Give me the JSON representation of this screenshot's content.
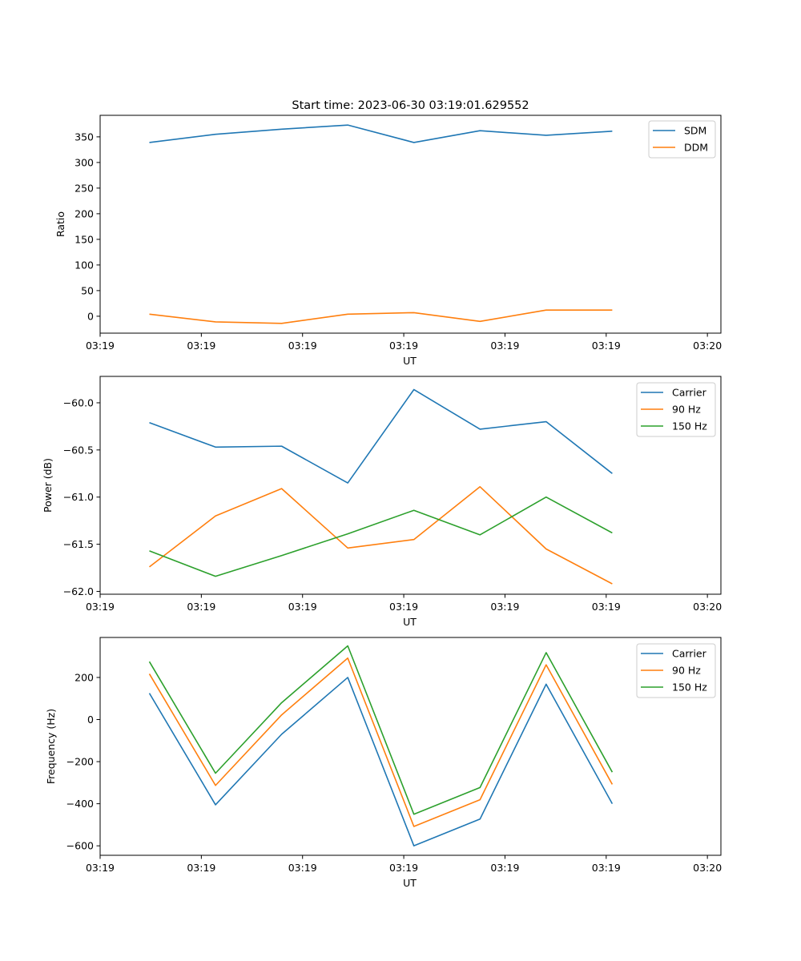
{
  "figure": {
    "title": "Start time: 2023-06-30 03:19:01.629552"
  },
  "chart_data": [
    {
      "type": "line",
      "xlabel": "UT",
      "ylabel": "Ratio",
      "xlim": [
        0,
        9.2
      ],
      "ylim": [
        -33,
        392
      ],
      "x_ticks": [
        {
          "value": 0,
          "label": "03:19"
        },
        {
          "value": 1.5,
          "label": "03:19"
        },
        {
          "value": 3,
          "label": "03:19"
        },
        {
          "value": 4.5,
          "label": "03:19"
        },
        {
          "value": 6,
          "label": "03:19"
        },
        {
          "value": 7.5,
          "label": "03:19"
        },
        {
          "value": 9,
          "label": "03:20"
        }
      ],
      "y_ticks": [
        0,
        50,
        100,
        150,
        200,
        250,
        300,
        350
      ],
      "grid": false,
      "legend_position": "top-right",
      "x": [
        0.73,
        1.71,
        2.69,
        3.67,
        4.65,
        5.63,
        6.61,
        7.59
      ],
      "series": [
        {
          "name": "SDM",
          "color": "#1f77b4",
          "values": [
            339,
            355,
            365,
            373,
            339,
            362,
            353,
            361
          ]
        },
        {
          "name": "DDM",
          "color": "#ff7f0e",
          "values": [
            4,
            -11,
            -14,
            4,
            7,
            -10,
            12,
            12
          ]
        }
      ]
    },
    {
      "type": "line",
      "xlabel": "UT",
      "ylabel": "Power (dB)",
      "xlim": [
        0,
        9.2
      ],
      "ylim": [
        -62.03,
        -59.72
      ],
      "x_ticks": [
        {
          "value": 0,
          "label": "03:19"
        },
        {
          "value": 1.5,
          "label": "03:19"
        },
        {
          "value": 3,
          "label": "03:19"
        },
        {
          "value": 4.5,
          "label": "03:19"
        },
        {
          "value": 6,
          "label": "03:19"
        },
        {
          "value": 7.5,
          "label": "03:19"
        },
        {
          "value": 9,
          "label": "03:20"
        }
      ],
      "y_ticks": [
        -62.0,
        -61.5,
        -61.0,
        -60.5,
        -60.0
      ],
      "y_tick_labels": [
        "−62.0",
        "−61.5",
        "−61.0",
        "−60.5",
        "−60.0"
      ],
      "grid": false,
      "legend_position": "top-right",
      "x": [
        0.73,
        1.71,
        2.69,
        3.67,
        4.65,
        5.63,
        6.61,
        7.59
      ],
      "series": [
        {
          "name": "Carrier",
          "color": "#1f77b4",
          "values": [
            -60.21,
            -60.47,
            -60.46,
            -60.85,
            -59.86,
            -60.28,
            -60.2,
            -60.75
          ]
        },
        {
          "name": "90 Hz",
          "color": "#ff7f0e",
          "values": [
            -61.74,
            -61.2,
            -60.91,
            -61.54,
            -61.45,
            -60.89,
            -61.55,
            -61.92
          ]
        },
        {
          "name": "150 Hz",
          "color": "#2ca02c",
          "values": [
            -61.57,
            -61.84,
            -61.62,
            -61.39,
            -61.14,
            -61.4,
            -61.0,
            -61.38
          ]
        }
      ]
    },
    {
      "type": "line",
      "xlabel": "UT",
      "ylabel": "Frequency (Hz)",
      "xlim": [
        0,
        9.2
      ],
      "ylim": [
        -645,
        390
      ],
      "x_ticks": [
        {
          "value": 0,
          "label": "03:19"
        },
        {
          "value": 1.5,
          "label": "03:19"
        },
        {
          "value": 3,
          "label": "03:19"
        },
        {
          "value": 4.5,
          "label": "03:19"
        },
        {
          "value": 6,
          "label": "03:19"
        },
        {
          "value": 7.5,
          "label": "03:19"
        },
        {
          "value": 9,
          "label": "03:20"
        }
      ],
      "y_ticks": [
        -600,
        -400,
        -200,
        0,
        200
      ],
      "y_tick_labels": [
        "−600",
        "−400",
        "−200",
        "0",
        "200"
      ],
      "grid": false,
      "legend_position": "top-right",
      "x": [
        0.73,
        1.71,
        2.69,
        3.67,
        4.65,
        5.63,
        6.61,
        7.59
      ],
      "series": [
        {
          "name": "Carrier",
          "color": "#1f77b4",
          "values": [
            125,
            -405,
            -70,
            200,
            -600,
            -473,
            168,
            -400
          ]
        },
        {
          "name": "90 Hz",
          "color": "#ff7f0e",
          "values": [
            217,
            -313,
            22,
            292,
            -508,
            -381,
            260,
            -308
          ]
        },
        {
          "name": "150 Hz",
          "color": "#2ca02c",
          "values": [
            275,
            -255,
            80,
            350,
            -450,
            -323,
            318,
            -250
          ]
        }
      ]
    }
  ]
}
